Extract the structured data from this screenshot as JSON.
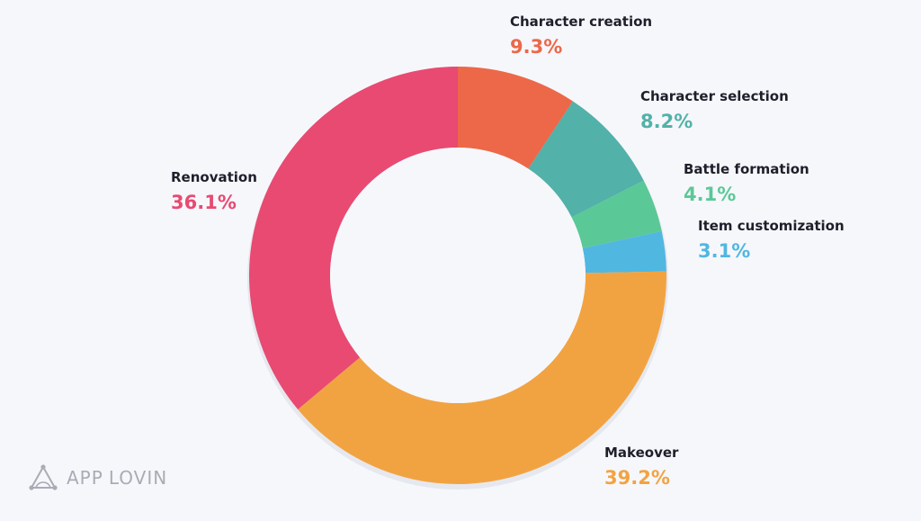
{
  "chart_data": {
    "type": "pie",
    "donut": true,
    "slices": [
      {
        "label": "Character creation",
        "value": 9.3,
        "value_label": "9.3%",
        "color": "#ec6849"
      },
      {
        "label": "Character selection",
        "value": 8.2,
        "value_label": "8.2%",
        "color": "#52b1a8"
      },
      {
        "label": "Battle formation",
        "value": 4.1,
        "value_label": "4.1%",
        "color": "#5bc897"
      },
      {
        "label": "Item customization",
        "value": 3.1,
        "value_label": "3.1%",
        "color": "#50b7e1"
      },
      {
        "label": "Makeover",
        "value": 39.2,
        "value_label": "39.2%",
        "color": "#f2a341"
      },
      {
        "label": "Renovation",
        "value": 36.1,
        "value_label": "36.1%",
        "color": "#e84a72"
      }
    ],
    "label_colors": [
      "#ec6849",
      "#52b1a8",
      "#5bc897",
      "#50b7e1",
      "#f2a341",
      "#e84a72"
    ]
  },
  "logo": {
    "word1": "APP",
    "word2": "LOVIN",
    "icon": "applovin-triangle-icon",
    "color": "#a9acb4"
  }
}
